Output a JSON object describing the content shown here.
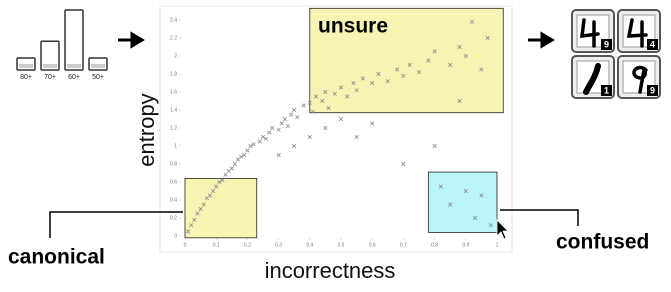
{
  "histogram": {
    "categories": [
      "80+",
      "70+",
      "60+",
      "50+"
    ],
    "values": [
      20,
      48,
      100,
      20
    ]
  },
  "chart_data": {
    "type": "scatter",
    "x_label": "incorrectness",
    "y_label": "entropy",
    "xlim": [
      0,
      1
    ],
    "ylim": [
      0,
      2.4
    ],
    "xticks": [
      0,
      0.1,
      0.2,
      0.3,
      0.4,
      0.5,
      0.6,
      0.7,
      0.8,
      0.9,
      1
    ],
    "yticks": [
      0,
      0.2,
      0.4,
      0.6,
      0.8,
      1,
      1.2,
      1.4,
      1.6,
      1.8,
      2,
      2.2,
      2.4
    ],
    "color": "#8a8a8a",
    "x": [
      0.01,
      0.02,
      0.03,
      0.04,
      0.05,
      0.06,
      0.07,
      0.08,
      0.09,
      0.1,
      0.11,
      0.12,
      0.13,
      0.14,
      0.15,
      0.16,
      0.17,
      0.18,
      0.19,
      0.2,
      0.21,
      0.22,
      0.24,
      0.25,
      0.26,
      0.27,
      0.28,
      0.3,
      0.31,
      0.32,
      0.33,
      0.34,
      0.35,
      0.36,
      0.38,
      0.4,
      0.41,
      0.42,
      0.44,
      0.45,
      0.46,
      0.48,
      0.5,
      0.52,
      0.54,
      0.55,
      0.57,
      0.6,
      0.62,
      0.65,
      0.68,
      0.7,
      0.72,
      0.75,
      0.78,
      0.8,
      0.85,
      0.88,
      0.9,
      0.95,
      0.97,
      0.3,
      0.35,
      0.4,
      0.45,
      0.5,
      0.55,
      0.6,
      0.82,
      0.85,
      0.9,
      0.93,
      0.95,
      0.98,
      0.7,
      0.8,
      0.88,
      0.92
    ],
    "y": [
      0.05,
      0.12,
      0.18,
      0.25,
      0.3,
      0.35,
      0.42,
      0.45,
      0.5,
      0.55,
      0.6,
      0.62,
      0.68,
      0.72,
      0.75,
      0.8,
      0.85,
      0.88,
      0.9,
      0.95,
      1.0,
      1.02,
      1.05,
      1.1,
      1.08,
      1.15,
      1.2,
      1.18,
      1.25,
      1.3,
      1.22,
      1.35,
      1.4,
      1.32,
      1.45,
      1.48,
      1.38,
      1.55,
      1.5,
      1.6,
      1.42,
      1.58,
      1.65,
      1.55,
      1.7,
      1.62,
      1.75,
      1.7,
      1.8,
      1.72,
      1.85,
      1.78,
      1.9,
      1.82,
      1.95,
      2.05,
      1.9,
      2.1,
      2.0,
      1.85,
      2.2,
      0.9,
      1.0,
      1.1,
      1.2,
      1.3,
      1.1,
      1.25,
      0.55,
      0.35,
      0.5,
      0.2,
      0.45,
      0.12,
      0.8,
      1.0,
      1.5,
      2.38
    ],
    "regions": [
      {
        "label": "unsure",
        "x": [
          0.4,
          1.02
        ],
        "y": [
          1.37,
          2.53
        ],
        "color": "#f8f4b4"
      },
      {
        "label": "canonical",
        "x": [
          0,
          0.23
        ],
        "y": [
          -0.02,
          0.64
        ],
        "color": "#f8f4b4"
      },
      {
        "label": "confused",
        "x": [
          0.78,
          1.0
        ],
        "y": [
          0.04,
          0.71
        ],
        "color": "#b8f4f8"
      }
    ]
  },
  "thumbnails": [
    {
      "badge": 9
    },
    {
      "badge": 4
    },
    {
      "badge": 1
    },
    {
      "badge": 9
    }
  ]
}
